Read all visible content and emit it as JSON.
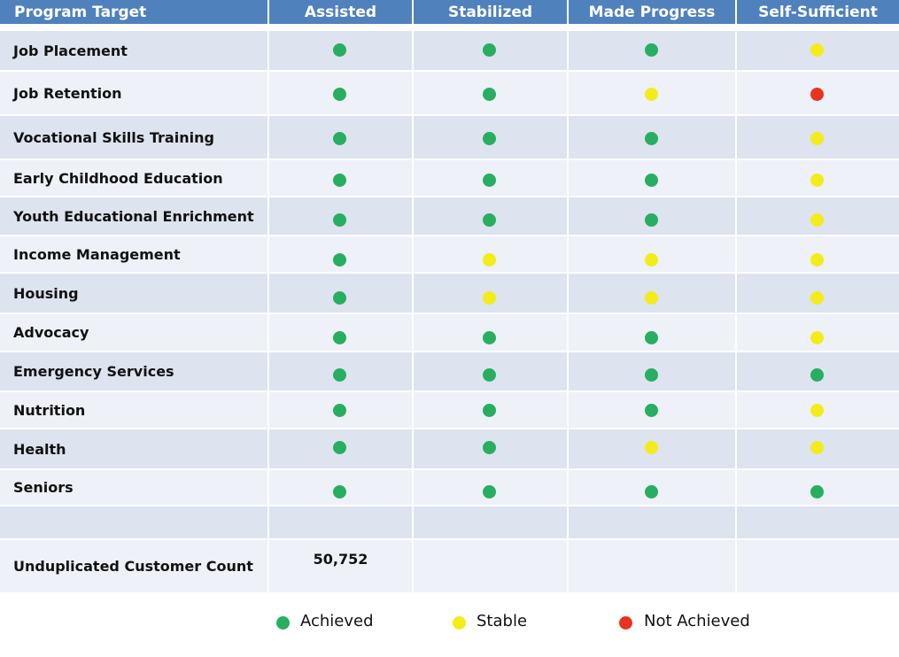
{
  "chart_data": {
    "type": "table",
    "columns": [
      "Program Target",
      "Assisted",
      "Stabilized",
      "Made Progress",
      "Self-Sufficient"
    ],
    "rows": [
      {
        "label": "Job Placement",
        "status": [
          "achieved",
          "achieved",
          "achieved",
          "stable"
        ]
      },
      {
        "label": "Job Retention",
        "status": [
          "achieved",
          "achieved",
          "stable",
          "not_achieved"
        ]
      },
      {
        "label": "Vocational Skills Training",
        "status": [
          "achieved",
          "achieved",
          "achieved",
          "stable"
        ]
      },
      {
        "label": "Early Childhood Education",
        "status": [
          "achieved",
          "achieved",
          "achieved",
          "stable"
        ]
      },
      {
        "label": "Youth Educational Enrichment",
        "status": [
          "achieved",
          "achieved",
          "achieved",
          "stable"
        ]
      },
      {
        "label": "Income Management",
        "status": [
          "achieved",
          "stable",
          "stable",
          "stable"
        ]
      },
      {
        "label": "Housing",
        "status": [
          "achieved",
          "stable",
          "stable",
          "stable"
        ]
      },
      {
        "label": "Advocacy",
        "status": [
          "achieved",
          "achieved",
          "achieved",
          "stable"
        ]
      },
      {
        "label": "Emergency Services",
        "status": [
          "achieved",
          "achieved",
          "achieved",
          "achieved"
        ]
      },
      {
        "label": "Nutrition",
        "status": [
          "achieved",
          "achieved",
          "achieved",
          "stable"
        ]
      },
      {
        "label": "Health",
        "status": [
          "achieved",
          "achieved",
          "stable",
          "stable"
        ]
      },
      {
        "label": "Seniors",
        "status": [
          "achieved",
          "achieved",
          "achieved",
          "achieved"
        ]
      }
    ],
    "summary": {
      "label": "Unduplicated Customer Count",
      "values": [
        "50,752",
        "",
        "",
        ""
      ]
    },
    "legend": [
      {
        "key": "achieved",
        "label": "Achieved",
        "color": "#27ae60"
      },
      {
        "key": "stable",
        "label": "Stable",
        "color": "#f3ec19"
      },
      {
        "key": "not_achieved",
        "label": "Not Achieved",
        "color": "#e8331f"
      }
    ],
    "header_color": "#4f81bd",
    "row_colors": [
      "#dde3ef",
      "#eef1f8"
    ]
  }
}
